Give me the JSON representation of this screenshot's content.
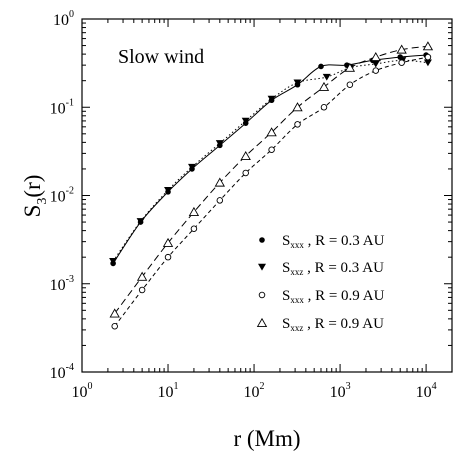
{
  "chart_data": {
    "type": "scatter",
    "xscale": "log",
    "yscale": "log",
    "xlim": [
      1,
      20000
    ],
    "ylim": [
      0.0001,
      1
    ],
    "x_ticks": [
      {
        "base": "10",
        "exp": "0"
      },
      {
        "base": "10",
        "exp": "1"
      },
      {
        "base": "10",
        "exp": "2"
      },
      {
        "base": "10",
        "exp": "3"
      },
      {
        "base": "10",
        "exp": "4"
      }
    ],
    "y_ticks": [
      {
        "base": "10",
        "exp": "-4"
      },
      {
        "base": "10",
        "exp": "-3"
      },
      {
        "base": "10",
        "exp": "-2"
      },
      {
        "base": "10",
        "exp": "-1"
      },
      {
        "base": "10",
        "exp": "0"
      }
    ],
    "xlabel": "r (Mm)",
    "ylabel": {
      "main": "S",
      "sub": "3",
      "rest": "(r)"
    },
    "annotation": "Slow wind",
    "grid": false,
    "legend_position": "lower-right",
    "series": [
      {
        "label_main": "S",
        "label_sub": "xxx",
        "label_rest": ", R = 0.3 AU",
        "marker": "filled-circle",
        "fit_line": "solid",
        "x": [
          2.3,
          4.8,
          10,
          19,
          40,
          80,
          160,
          320,
          600,
          1200,
          2400,
          5000,
          10000
        ],
        "y": [
          0.0017,
          0.005,
          0.011,
          0.02,
          0.037,
          0.066,
          0.12,
          0.18,
          0.29,
          0.3,
          0.34,
          0.37,
          0.39
        ]
      },
      {
        "label_main": "S",
        "label_sub": "xxz",
        "label_rest": ", R = 0.3 AU",
        "marker": "filled-triangle-down",
        "fit_line": "dotted",
        "x": [
          2.3,
          4.8,
          10,
          19,
          40,
          80,
          160,
          320,
          700,
          1300,
          2600,
          5300,
          10500
        ],
        "y": [
          0.0018,
          0.0051,
          0.0115,
          0.021,
          0.039,
          0.07,
          0.124,
          0.19,
          0.22,
          0.28,
          0.31,
          0.34,
          0.32
        ]
      },
      {
        "label_main": "S",
        "label_sub": "xxx",
        "label_rest": ", R = 0.9 AU",
        "marker": "open-circle",
        "fit_line": "dashed",
        "x": [
          2.4,
          5,
          10,
          20,
          40,
          80,
          160,
          320,
          650,
          1300,
          2600,
          5200,
          10500
        ],
        "y": [
          0.00033,
          0.00085,
          0.002,
          0.0042,
          0.0088,
          0.018,
          0.033,
          0.064,
          0.1,
          0.18,
          0.26,
          0.32,
          0.37
        ]
      },
      {
        "label_main": "S",
        "label_sub": "xxz",
        "label_rest": ", R = 0.9 AU",
        "marker": "open-triangle-up",
        "fit_line": "long-dash",
        "x": [
          2.4,
          5,
          10,
          20,
          40,
          80,
          160,
          320,
          650,
          1300,
          2600,
          5200,
          10500
        ],
        "y": [
          0.00046,
          0.0012,
          0.0029,
          0.0065,
          0.014,
          0.028,
          0.052,
          0.1,
          0.17,
          0.28,
          0.37,
          0.45,
          0.49
        ]
      }
    ]
  }
}
